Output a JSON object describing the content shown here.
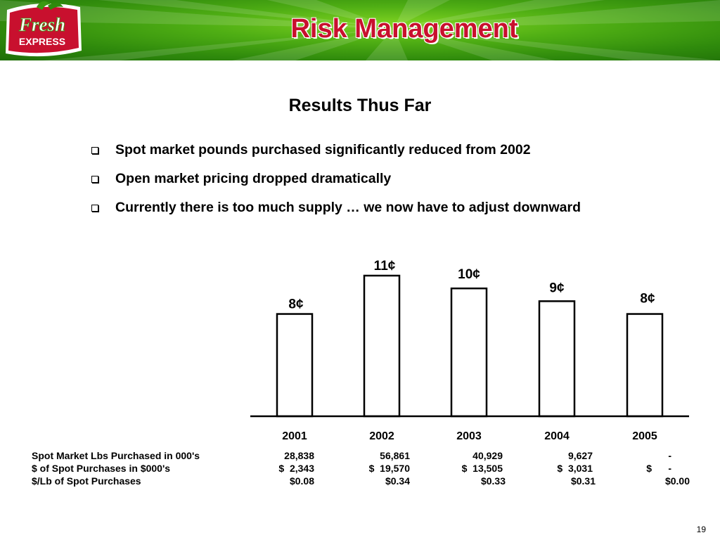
{
  "header": {
    "title": "Risk Management",
    "logo": {
      "line1": "Fresh",
      "line2": "EXPRESS"
    },
    "colors": {
      "green_light": "#7fd321",
      "green_dark": "#1f6e08",
      "title_red": "#c8102e"
    }
  },
  "subtitle": "Results Thus Far",
  "bullets": [
    "Spot market pounds purchased significantly reduced from 2002",
    "Open market pricing dropped dramatically",
    "Currently there is too much supply … we now have to adjust downward"
  ],
  "chart_data": {
    "type": "bar",
    "categories": [
      "2001",
      "2002",
      "2003",
      "2004",
      "2005"
    ],
    "values": [
      8,
      11,
      10,
      9,
      8
    ],
    "value_labels": [
      "8¢",
      "11¢",
      "10¢",
      "9¢",
      "8¢"
    ],
    "unit": "¢",
    "title": "",
    "xlabel": "",
    "ylabel": "",
    "ylim": [
      0,
      11
    ],
    "grid": false
  },
  "table": {
    "rows": [
      {
        "label": "Spot Market Lbs Purchased in 000's",
        "cells": [
          "28,838",
          "56,861",
          "40,929",
          "9,627",
          "-"
        ]
      },
      {
        "label": "$ of Spot Purchases in $000's",
        "cells": [
          "$  2,343",
          "$  19,570",
          "$  13,505",
          "$  3,031",
          "$      -"
        ]
      },
      {
        "label": "$/Lb of Spot Purchases",
        "cells": [
          "$0.08",
          "$0.34",
          "$0.33",
          "$0.31",
          "$0.00"
        ]
      }
    ]
  },
  "page_number": "19"
}
